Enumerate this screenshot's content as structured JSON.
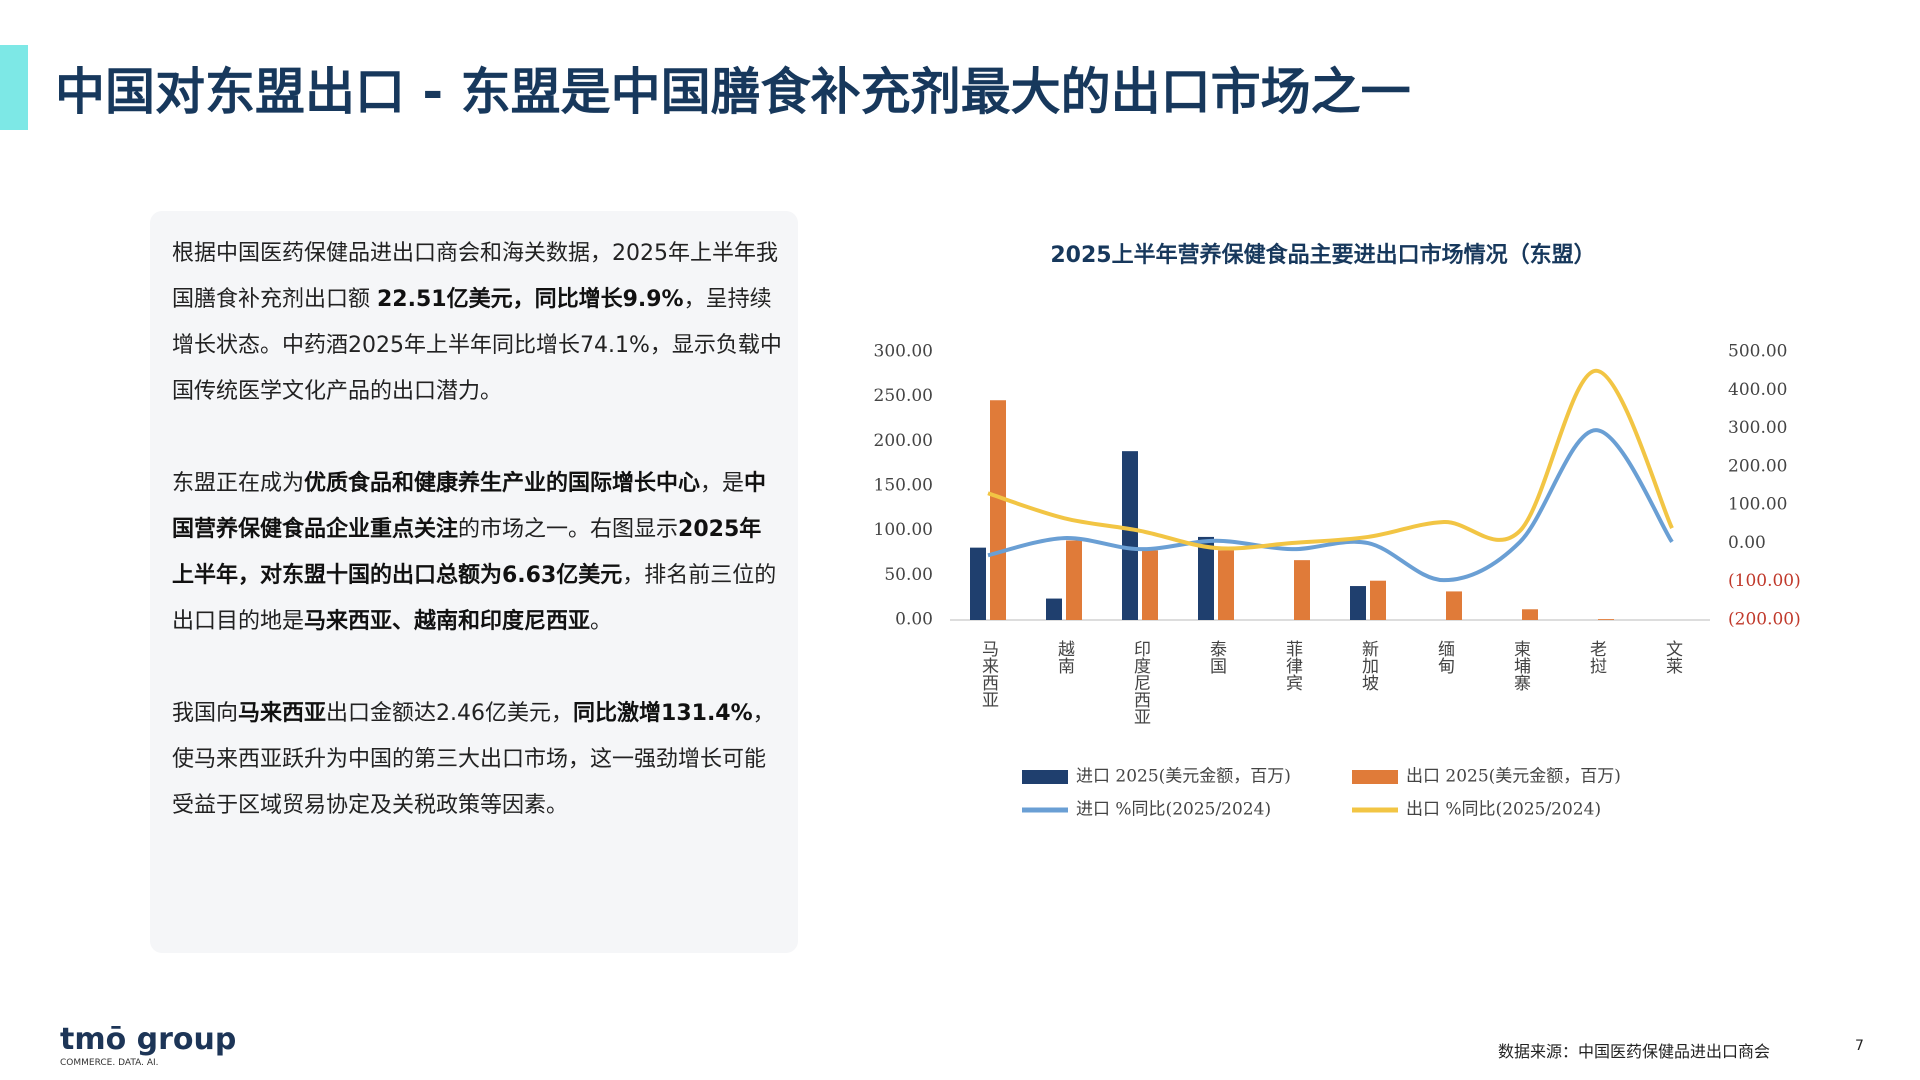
{
  "title": "中国对东盟出口 - 东盟是中国膳食补充剂最大的出口市场之一",
  "text": {
    "paragraphs": [
      [
        {
          "text": "根据中国医药保健品进出口商会和海关数据，2025年上半年我国膳食补充剂出口额 ",
          "bold": false
        },
        {
          "text": "22.51亿美元，同比增长9.9%",
          "bold": true
        },
        {
          "text": "，呈持续增长状态。中药酒2025年上半年同比增长74.1%，显示负载中国传统医学文化产品的出口潜力。",
          "bold": false
        }
      ],
      [
        {
          "text": "东盟正在成为",
          "bold": false
        },
        {
          "text": "优质食品和健康养生产业的国际增长中心",
          "bold": true
        },
        {
          "text": "，是",
          "bold": false
        },
        {
          "text": "中国营养保健食品企业重点关注",
          "bold": true
        },
        {
          "text": "的市场之一。右图显示",
          "bold": false
        },
        {
          "text": "2025年上半年，对东盟十国的出口总额为6.63亿美元",
          "bold": true
        },
        {
          "text": "，排名前三位的出口目的地是",
          "bold": false
        },
        {
          "text": "马来西亚、越南和印度尼西亚",
          "bold": true
        },
        {
          "text": "。",
          "bold": false
        }
      ],
      [
        {
          "text": "我国向",
          "bold": false
        },
        {
          "text": "马来西亚",
          "bold": true
        },
        {
          "text": "出口金额达2.46亿美元，",
          "bold": false
        },
        {
          "text": "同比激增131.4%",
          "bold": true
        },
        {
          "text": "，使马来西亚跃升为中国的第三大出口市场，这一强劲增长可能受益于区域贸易协定及关税政策等因素。",
          "bold": false
        }
      ]
    ]
  },
  "chart_data": {
    "type": "bar-line",
    "title": "2025上半年营养保健食品主要进出口市场情况（东盟）",
    "categories": [
      "马来西亚",
      "越南",
      "印度尼西亚",
      "泰国",
      "菲律宾",
      "新加坡",
      "缅甸",
      "柬埔寨",
      "老挝",
      "文莱"
    ],
    "series": [
      {
        "name": "进口 2025(美元金额，百万)",
        "type": "bar",
        "color": "#1f3f6e",
        "values": [
          81,
          24,
          189,
          93,
          null,
          38,
          null,
          null,
          null,
          null
        ]
      },
      {
        "name": "出口 2025(美元金额，百万)",
        "type": "bar",
        "color": "#e07b39",
        "values": [
          246,
          89,
          78,
          78,
          67,
          44,
          32,
          12,
          1,
          null
        ]
      },
      {
        "name": "进口 %同比(2025/2024)",
        "type": "line",
        "axis": "y2",
        "color": "#6a9fd4",
        "values": [
          -31,
          14,
          -15,
          7,
          -15,
          1,
          -96,
          4,
          296,
          4
        ]
      },
      {
        "name": "出口 %同比(2025/2024)",
        "type": "line",
        "axis": "y2",
        "color": "#f2c544",
        "values": [
          131,
          66,
          33,
          -12,
          1,
          17,
          56,
          33,
          451,
          40
        ]
      }
    ],
    "ylim": [
      0,
      300
    ],
    "yticks": [
      {
        "value": 0,
        "label": "0.00"
      },
      {
        "value": 50,
        "label": "50.00"
      },
      {
        "value": 100,
        "label": "100.00"
      },
      {
        "value": 150,
        "label": "150.00"
      },
      {
        "value": 200,
        "label": "200.00"
      },
      {
        "value": 250,
        "label": "250.00"
      },
      {
        "value": 300,
        "label": "300.00"
      }
    ],
    "y2lim": [
      -200,
      500
    ],
    "y2ticks": [
      {
        "value": -200,
        "label": "(200.00)"
      },
      {
        "value": -100,
        "label": "(100.00)"
      },
      {
        "value": 0,
        "label": "0.00"
      },
      {
        "value": 100,
        "label": "100.00"
      },
      {
        "value": 200,
        "label": "200.00"
      },
      {
        "value": 300,
        "label": "300.00"
      },
      {
        "value": 400,
        "label": "400.00"
      },
      {
        "value": 500,
        "label": "500.00"
      }
    ],
    "negative_label_color": "#c0392b"
  },
  "footer": {
    "source": "数据来源：中国医药保健品进出口商会",
    "page": "7",
    "logo": "tmō group",
    "tagline": "COMMERCE. DATA. AI."
  }
}
